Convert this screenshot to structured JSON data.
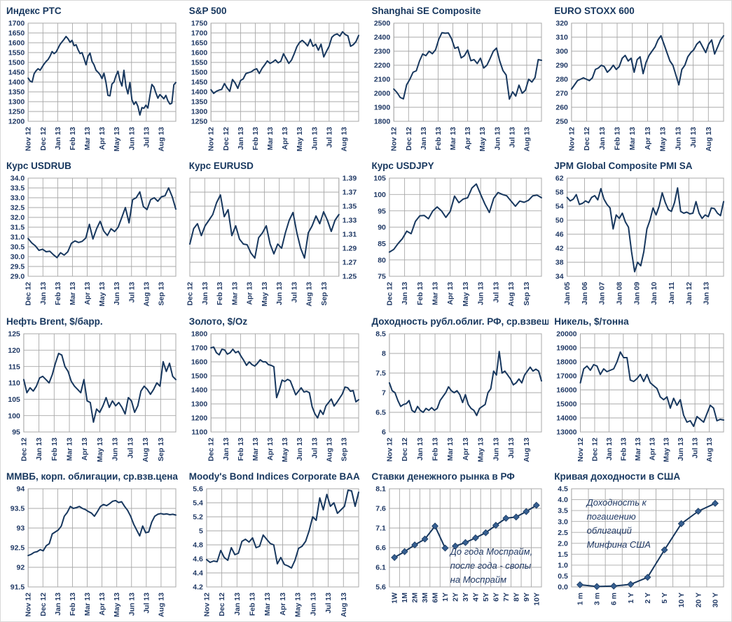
{
  "colors": {
    "line": "#17375E",
    "tick_label": "#1F3864",
    "grid": "#A8A8A8",
    "marker_fill": "#365F91",
    "title": "#17375E",
    "annotation": "#1F3864",
    "background": "#FFFFFF"
  },
  "chart_data": [
    {
      "type": "line",
      "title": "Индекс РТС",
      "categories": [
        "Nov 12",
        "Dec 12",
        "Jan 13",
        "Feb 13",
        "Mar 13",
        "Apr 13",
        "May 13",
        "Jun 13",
        "Jul 13",
        "Aug 13"
      ],
      "ylim": [
        1200,
        1700
      ],
      "yticks": [
        "1700",
        "1650",
        "1600",
        "1550",
        "1500",
        "1450",
        "1400",
        "1350",
        "1300",
        "1250",
        "1200"
      ],
      "values": [
        1420,
        1405,
        1400,
        1442,
        1458,
        1468,
        1460,
        1476,
        1492,
        1505,
        1515,
        1532,
        1555,
        1545,
        1553,
        1572,
        1592,
        1605,
        1618,
        1632,
        1620,
        1603,
        1612,
        1585,
        1590,
        1565,
        1545,
        1550,
        1520,
        1488,
        1532,
        1548,
        1505,
        1488,
        1460,
        1450,
        1438,
        1418,
        1445,
        1398,
        1332,
        1330,
        1390,
        1400,
        1432,
        1455,
        1408,
        1380,
        1460,
        1378,
        1340,
        1398,
        1310,
        1286,
        1300,
        1276,
        1232,
        1270,
        1266,
        1282,
        1268,
        1330,
        1388,
        1375,
        1345,
        1318,
        1336,
        1326,
        1315,
        1332,
        1305,
        1288,
        1292,
        1386,
        1398
      ]
    },
    {
      "type": "line",
      "title": "S&P 500",
      "categories": [
        "Nov 12",
        "Dec 12",
        "Jan 13",
        "Feb 13",
        "Mar 13",
        "Apr 13",
        "May 13",
        "Jun 13",
        "Jul 13",
        "Aug 13"
      ],
      "ylim": [
        1250,
        1750
      ],
      "yticks": [
        "1750",
        "1700",
        "1650",
        "1600",
        "1550",
        "1500",
        "1450",
        "1400",
        "1350",
        "1300",
        "1250"
      ],
      "values": [
        1411,
        1392,
        1403,
        1409,
        1413,
        1442,
        1420,
        1403,
        1463,
        1445,
        1418,
        1458,
        1466,
        1493,
        1498,
        1502,
        1512,
        1518,
        1494,
        1519,
        1538,
        1558,
        1545,
        1552,
        1563,
        1548,
        1556,
        1594,
        1570,
        1545,
        1562,
        1594,
        1630,
        1652,
        1662,
        1650,
        1634,
        1667,
        1632,
        1642,
        1612,
        1643,
        1578,
        1606,
        1632,
        1678,
        1690,
        1695,
        1684,
        1706,
        1692,
        1685,
        1632,
        1640,
        1656,
        1687
      ]
    },
    {
      "type": "line",
      "title": "Shanghai SE Composite",
      "categories": [
        "Nov 12",
        "Dec 12",
        "Jan 13",
        "Feb 13",
        "Mar 13",
        "Apr 13",
        "May 13",
        "Jun 13",
        "Jul 13",
        "Aug 13"
      ],
      "ylim": [
        1800,
        2500
      ],
      "yticks": [
        "2500",
        "2400",
        "2300",
        "2200",
        "2100",
        "2000",
        "1900",
        "1800"
      ],
      "values": [
        2030,
        2005,
        1970,
        1960,
        2060,
        2100,
        2150,
        2160,
        2230,
        2280,
        2268,
        2300,
        2282,
        2310,
        2385,
        2432,
        2428,
        2430,
        2388,
        2320,
        2330,
        2252,
        2268,
        2308,
        2232,
        2240,
        2212,
        2250,
        2180,
        2200,
        2248,
        2300,
        2322,
        2230,
        2162,
        2130,
        1958,
        2010,
        1980,
        2058,
        2000,
        2022,
        2100,
        2080,
        2112,
        2240,
        2235
      ]
    },
    {
      "type": "line",
      "title": "EURO STOXX 600",
      "categories": [
        "Nov 12",
        "Dec 12",
        "Jan 13",
        "Feb 13",
        "Mar 13",
        "Apr 13",
        "May 13",
        "Jun 13",
        "Jul 13",
        "Aug 13"
      ],
      "ylim": [
        250,
        320
      ],
      "yticks": [
        "320",
        "310",
        "300",
        "290",
        "280",
        "270",
        "260",
        "250"
      ],
      "values": [
        273,
        276,
        279,
        280,
        281,
        280,
        279,
        281,
        287,
        288,
        290,
        289,
        285,
        287,
        290,
        287,
        289,
        295,
        297,
        293,
        295,
        285,
        294,
        296,
        284,
        292,
        297,
        300,
        303,
        308,
        311,
        305,
        299,
        293,
        290,
        283,
        276,
        287,
        290,
        296,
        299,
        301,
        305,
        307,
        303,
        299,
        305,
        308,
        298,
        303,
        308,
        311
      ]
    },
    {
      "type": "line",
      "title": "Курс USDRUB",
      "categories": [
        "Dec 12",
        "Jan 13",
        "Feb 13",
        "Mar 13",
        "Apr 13",
        "May 13",
        "Jun 13",
        "Jul 13",
        "Aug 13",
        "Sep 13"
      ],
      "ylim": [
        29.0,
        34.0
      ],
      "yticks": [
        "34.0",
        "33.5",
        "33.0",
        "32.5",
        "32.0",
        "31.5",
        "31.0",
        "30.5",
        "30.0",
        "29.5",
        "29.0"
      ],
      "values": [
        30.92,
        30.7,
        30.55,
        30.32,
        30.38,
        30.25,
        30.28,
        30.1,
        29.95,
        30.2,
        30.08,
        30.25,
        30.68,
        30.8,
        30.72,
        30.78,
        30.95,
        31.65,
        30.9,
        31.42,
        31.8,
        31.3,
        31.08,
        31.42,
        31.28,
        31.5,
        32.0,
        32.5,
        31.72,
        32.9,
        33.0,
        33.3,
        32.55,
        32.4,
        32.9,
        33.0,
        32.82,
        33.05,
        33.1,
        33.5,
        33.05,
        32.42
      ]
    },
    {
      "type": "line",
      "title": "Курс EURUSD",
      "y_axis": "right",
      "categories": [
        "Dec 12",
        "Jan 13",
        "Feb 13",
        "Mar 13",
        "Apr 13",
        "May 13",
        "Jun 13",
        "Jul 13",
        "Aug 13",
        "Sep 13"
      ],
      "ylim": [
        1.25,
        1.39
      ],
      "yticks": [
        "1.39",
        "1.37",
        "1.35",
        "1.33",
        "1.31",
        "1.29",
        "1.27",
        "1.25"
      ],
      "values": [
        1.296,
        1.318,
        1.325,
        1.308,
        1.322,
        1.33,
        1.338,
        1.355,
        1.366,
        1.335,
        1.345,
        1.308,
        1.322,
        1.303,
        1.296,
        1.295,
        1.283,
        1.276,
        1.305,
        1.312,
        1.322,
        1.296,
        1.282,
        1.296,
        1.29,
        1.312,
        1.33,
        1.341,
        1.312,
        1.29,
        1.276,
        1.312,
        1.322,
        1.336,
        1.325,
        1.342,
        1.33,
        1.314,
        1.33,
        1.338
      ]
    },
    {
      "type": "line",
      "title": "Курс USDJPY",
      "categories": [
        "Dec 12",
        "Jan 13",
        "Feb 13",
        "Mar 13",
        "Apr 13",
        "May 13",
        "Jun 13",
        "Jul 13",
        "Aug 13",
        "Sep 13"
      ],
      "ylim": [
        75,
        105
      ],
      "yticks": [
        "105",
        "100",
        "95",
        "90",
        "85",
        "80",
        "75"
      ],
      "values": [
        82.4,
        83.2,
        85,
        86.5,
        88.8,
        88,
        91.8,
        93.5,
        93.6,
        92.6,
        95,
        96.2,
        95,
        93,
        94.8,
        99.5,
        97.5,
        98.6,
        99,
        102,
        103.2,
        100,
        97,
        94.5,
        98.8,
        100.6,
        100,
        99.6,
        98,
        96.4,
        98,
        97.6,
        98.2,
        99.6,
        99.8,
        99
      ]
    },
    {
      "type": "line",
      "title": "JPM Global Composite PMI SA",
      "categories": [
        "Jan 05",
        "Jan 06",
        "Jan 07",
        "Jan 08",
        "Jan 09",
        "Jan 10",
        "Jan 11",
        "Jan 12",
        "Jan 13"
      ],
      "ylim": [
        34,
        62
      ],
      "yticks": [
        "62",
        "58",
        "54",
        "50",
        "46",
        "42",
        "38",
        "34"
      ],
      "values": [
        56.5,
        55.5,
        56,
        57.3,
        54.5,
        54.8,
        55.5,
        55,
        56.5,
        57,
        55.8,
        59,
        56,
        54.5,
        53.5,
        47.5,
        51.5,
        50.5,
        52,
        49.5,
        48,
        41,
        35.3,
        38,
        37,
        41,
        47.5,
        50,
        53.5,
        51.5,
        54,
        57.8,
        55,
        53,
        52.5,
        55,
        59.2,
        52.5,
        52,
        52.3,
        51.8,
        52,
        55.3,
        52,
        50.5,
        51.5,
        51,
        53.5,
        53.3,
        52,
        51.3,
        55.3
      ]
    },
    {
      "type": "line",
      "title": "Нефть Brent, $/барр.",
      "categories": [
        "Dec 12",
        "Jan 13",
        "Feb 13",
        "Mar 13",
        "Apr 13",
        "May 13",
        "Jun 13",
        "Jul 13",
        "Aug 13",
        "Sep 13"
      ],
      "ylim": [
        95,
        125
      ],
      "yticks": [
        "125",
        "120",
        "115",
        "110",
        "105",
        "100",
        "95"
      ],
      "values": [
        111,
        107,
        108.5,
        107.5,
        109,
        111.5,
        112,
        111,
        110,
        112.5,
        116,
        119,
        118.5,
        115,
        113.5,
        110.5,
        109,
        108,
        107,
        111,
        104.5,
        104,
        98,
        102,
        101,
        103,
        105.5,
        102.5,
        104.5,
        103,
        104,
        102.5,
        100.5,
        105.5,
        104.5,
        101,
        103,
        107.5,
        109,
        108,
        106.5,
        108,
        110,
        109,
        116.5,
        113.5,
        116,
        112,
        111
      ]
    },
    {
      "type": "line",
      "title": "Золото, $/Oz",
      "categories": [
        "Dec 12",
        "Jan 13",
        "Feb 13",
        "Mar 13",
        "Apr 13",
        "May 13",
        "Jun 13",
        "Jul 13",
        "Aug 13",
        "Sep 13"
      ],
      "ylim": [
        1100,
        1800
      ],
      "yticks": [
        "1800",
        "1700",
        "1600",
        "1500",
        "1400",
        "1300",
        "1200",
        "1100"
      ],
      "values": [
        1700,
        1705,
        1665,
        1650,
        1690,
        1685,
        1655,
        1665,
        1690,
        1665,
        1675,
        1640,
        1610,
        1575,
        1600,
        1580,
        1570,
        1590,
        1615,
        1600,
        1600,
        1580,
        1575,
        1565,
        1345,
        1400,
        1470,
        1460,
        1475,
        1465,
        1415,
        1365,
        1390,
        1415,
        1385,
        1390,
        1380,
        1280,
        1230,
        1200,
        1255,
        1225,
        1285,
        1310,
        1335,
        1285,
        1310,
        1340,
        1370,
        1420,
        1415,
        1390,
        1395,
        1315,
        1330
      ]
    },
    {
      "type": "line",
      "title": "Доходность рубл.облиг. РФ, ср.взвеш., %",
      "categories": [
        "Nov 12",
        "Dec 12",
        "Jan 13",
        "Feb 13",
        "Mar 13",
        "Apr 13",
        "May 13",
        "Jun 13",
        "Jul 13",
        "Aug 13"
      ],
      "ylim": [
        6,
        8.5
      ],
      "yticks": [
        "8.5",
        "8",
        "7.5",
        "7",
        "6.5",
        "6"
      ],
      "values": [
        7.25,
        7.05,
        7.0,
        6.8,
        6.65,
        6.7,
        6.72,
        6.8,
        6.55,
        6.5,
        6.65,
        6.55,
        6.5,
        6.6,
        6.55,
        6.62,
        6.55,
        6.6,
        6.8,
        6.9,
        7.0,
        7.15,
        7.05,
        7.0,
        7.05,
        6.95,
        6.75,
        6.95,
        6.7,
        6.6,
        6.55,
        6.42,
        6.6,
        6.65,
        6.7,
        7.0,
        7.1,
        7.55,
        7.45,
        8.05,
        7.5,
        7.55,
        7.45,
        7.35,
        7.2,
        7.25,
        7.35,
        7.25,
        7.45,
        7.55,
        7.65,
        7.55,
        7.6,
        7.55,
        7.3
      ]
    },
    {
      "type": "line",
      "title": "Никель, $/тонна",
      "categories": [
        "Nov 12",
        "Dec 12",
        "Jan 13",
        "Feb 13",
        "Mar 13",
        "Apr 13",
        "May 13",
        "Jun 13",
        "Jul 13",
        "Aug 13"
      ],
      "ylim": [
        13000,
        20000
      ],
      "yticks": [
        "20000",
        "19000",
        "18000",
        "17000",
        "16000",
        "15000",
        "14000",
        "13000"
      ],
      "values": [
        16500,
        17500,
        17700,
        17400,
        17800,
        17700,
        17100,
        17500,
        17300,
        17400,
        17500,
        18000,
        18700,
        18300,
        18300,
        16700,
        16600,
        16800,
        17100,
        16600,
        17100,
        16500,
        16300,
        16100,
        15500,
        15300,
        15500,
        14700,
        15400,
        14900,
        15300,
        14200,
        13700,
        13800,
        13400,
        14100,
        13900,
        13700,
        14300,
        14900,
        14700,
        13800,
        13900,
        13850
      ]
    },
    {
      "type": "line",
      "title": "ММВБ, корп. облигации, ср.взв.цена",
      "categories": [
        "Nov 12",
        "Dec 12",
        "Jan 13",
        "Feb 13",
        "Mar 13",
        "Apr 13",
        "May 13",
        "Jun 13",
        "Jul 13",
        "Aug 13"
      ],
      "ylim": [
        91.5,
        94
      ],
      "yticks": [
        "94",
        "93.5",
        "93",
        "92.5",
        "92",
        "91.5"
      ],
      "values": [
        92.3,
        92.33,
        92.38,
        92.4,
        92.45,
        92.42,
        92.55,
        92.6,
        92.85,
        92.9,
        92.95,
        93.05,
        93.3,
        93.4,
        93.55,
        93.5,
        93.52,
        93.55,
        93.5,
        93.47,
        93.42,
        93.38,
        93.3,
        93.42,
        93.55,
        93.6,
        93.57,
        93.62,
        93.68,
        93.7,
        93.65,
        93.67,
        93.55,
        93.45,
        93.3,
        93.1,
        92.95,
        92.8,
        93.05,
        92.88,
        92.9,
        93.15,
        93.3,
        93.35,
        93.37,
        93.35,
        93.36,
        93.34,
        93.35,
        93.33
      ]
    },
    {
      "type": "line",
      "title": "Moody's Bond Indices Corporate BAA",
      "categories": [
        "Nov 12",
        "Dec 12",
        "Jan 13",
        "Feb 13",
        "Mar 13",
        "Apr 13",
        "May 13",
        "Jun 13",
        "Jul 13",
        "Aug 13"
      ],
      "ylim": [
        4.2,
        5.6
      ],
      "yticks": [
        "5.6",
        "5.4",
        "5.2",
        "5",
        "4.8",
        "4.6",
        "4.4",
        "4.2"
      ],
      "values": [
        4.59,
        4.55,
        4.57,
        4.56,
        4.72,
        4.62,
        4.58,
        4.76,
        4.66,
        4.68,
        4.85,
        4.88,
        4.84,
        4.9,
        4.76,
        4.78,
        4.94,
        4.88,
        4.82,
        4.8,
        4.53,
        4.62,
        4.52,
        4.5,
        4.47,
        4.58,
        4.75,
        4.78,
        4.85,
        5.0,
        5.2,
        5.15,
        5.47,
        5.3,
        5.52,
        5.35,
        5.4,
        5.25,
        5.3,
        5.35,
        5.58,
        5.57,
        5.35,
        5.55
      ]
    },
    {
      "type": "line",
      "title": "Ставки денежного рынка в РФ",
      "category_axis": true,
      "markers": true,
      "categories": [
        "1W",
        "1M",
        "2M",
        "3M",
        "6M",
        "1Y",
        "2Y",
        "3Y",
        "4Y",
        "5Y",
        "6Y",
        "7Y",
        "8Y",
        "9Y",
        "10Y"
      ],
      "ylim": [
        5.6,
        8.1
      ],
      "yticks": [
        "8.1",
        "7.6",
        "7.1",
        "6.6",
        "6.1",
        "5.6"
      ],
      "series": [
        {
          "name": "Моспрайм (до года)",
          "x": [
            0,
            1,
            2,
            3,
            4,
            5
          ],
          "values": [
            6.35,
            6.5,
            6.67,
            6.82,
            7.15,
            6.59
          ]
        },
        {
          "name": "Свопы на Моспрайм (после года)",
          "x": [
            6,
            7,
            8,
            9,
            10,
            11,
            12,
            13,
            14
          ],
          "values": [
            6.64,
            6.73,
            6.85,
            6.98,
            7.17,
            7.35,
            7.38,
            7.52,
            7.68
          ]
        }
      ],
      "annotation": {
        "lines": [
          "До года Моспрайм,",
          "после года - свопы",
          "на Моспрайм"
        ],
        "x": 0.4,
        "y": 0.6
      }
    },
    {
      "type": "line",
      "title": "Кривая доходности в США",
      "category_axis": true,
      "markers": true,
      "categories": [
        "1 m",
        "3 m",
        "6 m",
        "1 Y",
        "2 Y",
        "5 Y",
        "10 Y",
        "20 Y",
        "30 Y"
      ],
      "ylim": [
        0.0,
        4.5
      ],
      "yticks": [
        "4.5",
        "4.0",
        "3.5",
        "3.0",
        "2.5",
        "2.0",
        "1.5",
        "1.0",
        "0.5",
        "0.0"
      ],
      "values": [
        0.1,
        0.02,
        0.04,
        0.12,
        0.44,
        1.7,
        2.9,
        3.47,
        3.83
      ],
      "annotation": {
        "lines": [
          "Доходность к",
          "погашению",
          "облигаций",
          "Минфина США"
        ],
        "x": 0.1,
        "y": 0.1
      }
    }
  ]
}
